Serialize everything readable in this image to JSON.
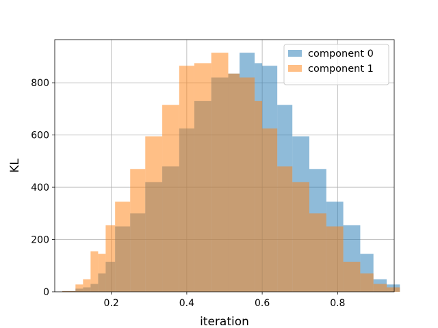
{
  "chart_data": {
    "type": "histogram",
    "xlabel": "iteration",
    "ylabel": "KL",
    "xlim": [
      0.05,
      0.95
    ],
    "ylim": [
      0,
      965
    ],
    "xticks": [
      0.2,
      0.4,
      0.6,
      0.8
    ],
    "yticks": [
      0,
      200,
      400,
      600,
      800
    ],
    "grid": true,
    "legend_position": "top-right",
    "series": [
      {
        "name": "component 0",
        "color": "#1f77b4",
        "opacity": 0.5,
        "bins": [
          {
            "x0": 0.07,
            "x1": 0.105,
            "count": 3
          },
          {
            "x0": 0.105,
            "x1": 0.125,
            "count": 12
          },
          {
            "x0": 0.125,
            "x1": 0.145,
            "count": 17
          },
          {
            "x0": 0.145,
            "x1": 0.165,
            "count": 30
          },
          {
            "x0": 0.165,
            "x1": 0.185,
            "count": 70
          },
          {
            "x0": 0.185,
            "x1": 0.21,
            "count": 115
          },
          {
            "x0": 0.21,
            "x1": 0.25,
            "count": 250
          },
          {
            "x0": 0.25,
            "x1": 0.29,
            "count": 300
          },
          {
            "x0": 0.29,
            "x1": 0.335,
            "count": 420
          },
          {
            "x0": 0.335,
            "x1": 0.38,
            "count": 480
          },
          {
            "x0": 0.38,
            "x1": 0.42,
            "count": 625
          },
          {
            "x0": 0.42,
            "x1": 0.465,
            "count": 730
          },
          {
            "x0": 0.465,
            "x1": 0.51,
            "count": 820
          },
          {
            "x0": 0.51,
            "x1": 0.54,
            "count": 835
          },
          {
            "x0": 0.54,
            "x1": 0.58,
            "count": 915
          },
          {
            "x0": 0.58,
            "x1": 0.6,
            "count": 875
          },
          {
            "x0": 0.6,
            "x1": 0.64,
            "count": 865
          },
          {
            "x0": 0.64,
            "x1": 0.68,
            "count": 715
          },
          {
            "x0": 0.68,
            "x1": 0.725,
            "count": 595
          },
          {
            "x0": 0.725,
            "x1": 0.77,
            "count": 470
          },
          {
            "x0": 0.77,
            "x1": 0.815,
            "count": 345
          },
          {
            "x0": 0.815,
            "x1": 0.86,
            "count": 255
          },
          {
            "x0": 0.86,
            "x1": 0.895,
            "count": 145
          },
          {
            "x0": 0.895,
            "x1": 0.93,
            "count": 48
          },
          {
            "x0": 0.93,
            "x1": 0.965,
            "count": 28
          }
        ]
      },
      {
        "name": "component 1",
        "color": "#ff7f0e",
        "opacity": 0.5,
        "bins": [
          {
            "x0": 0.07,
            "x1": 0.105,
            "count": 3
          },
          {
            "x0": 0.105,
            "x1": 0.125,
            "count": 28
          },
          {
            "x0": 0.125,
            "x1": 0.145,
            "count": 48
          },
          {
            "x0": 0.145,
            "x1": 0.165,
            "count": 155
          },
          {
            "x0": 0.165,
            "x1": 0.185,
            "count": 145
          },
          {
            "x0": 0.185,
            "x1": 0.21,
            "count": 255
          },
          {
            "x0": 0.21,
            "x1": 0.25,
            "count": 345
          },
          {
            "x0": 0.25,
            "x1": 0.29,
            "count": 470
          },
          {
            "x0": 0.29,
            "x1": 0.335,
            "count": 595
          },
          {
            "x0": 0.335,
            "x1": 0.38,
            "count": 715
          },
          {
            "x0": 0.38,
            "x1": 0.42,
            "count": 865
          },
          {
            "x0": 0.42,
            "x1": 0.465,
            "count": 875
          },
          {
            "x0": 0.465,
            "x1": 0.51,
            "count": 915
          },
          {
            "x0": 0.51,
            "x1": 0.54,
            "count": 835
          },
          {
            "x0": 0.54,
            "x1": 0.58,
            "count": 820
          },
          {
            "x0": 0.58,
            "x1": 0.6,
            "count": 730
          },
          {
            "x0": 0.6,
            "x1": 0.64,
            "count": 625
          },
          {
            "x0": 0.64,
            "x1": 0.68,
            "count": 480
          },
          {
            "x0": 0.68,
            "x1": 0.725,
            "count": 420
          },
          {
            "x0": 0.725,
            "x1": 0.77,
            "count": 300
          },
          {
            "x0": 0.77,
            "x1": 0.815,
            "count": 250
          },
          {
            "x0": 0.815,
            "x1": 0.86,
            "count": 115
          },
          {
            "x0": 0.86,
            "x1": 0.895,
            "count": 70
          },
          {
            "x0": 0.895,
            "x1": 0.93,
            "count": 30
          },
          {
            "x0": 0.93,
            "x1": 0.965,
            "count": 17
          }
        ]
      }
    ]
  }
}
